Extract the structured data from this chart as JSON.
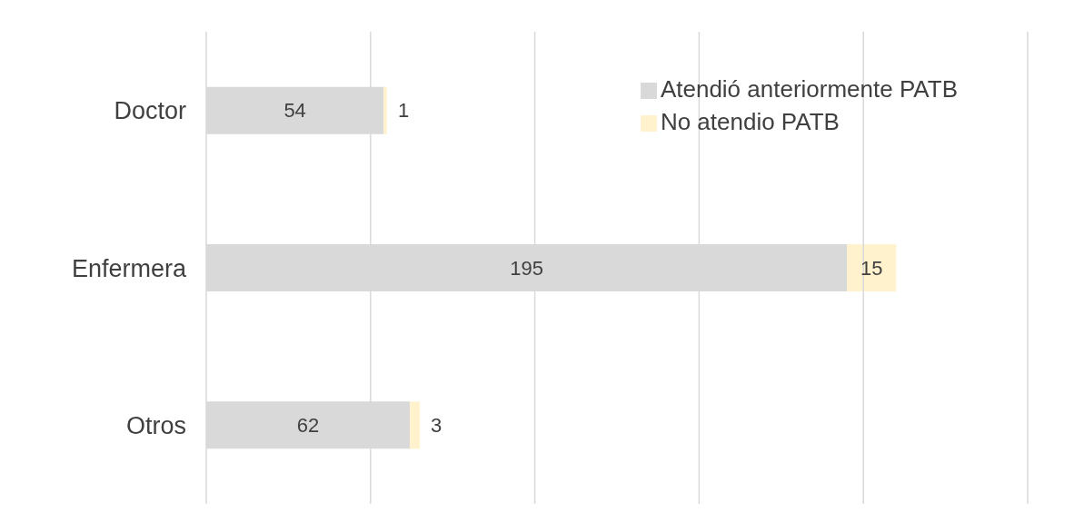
{
  "chart_data": {
    "type": "bar",
    "orientation": "horizontal",
    "stacked": true,
    "categories": [
      "Doctor",
      "Enfermera",
      "Otros"
    ],
    "series": [
      {
        "name": "Atendió anteriormente PATB",
        "color": "#d9d9d9",
        "values": [
          54,
          195,
          62
        ]
      },
      {
        "name": "No atendio PATB",
        "color": "#fff2cc",
        "values": [
          1,
          15,
          3
        ]
      }
    ],
    "xlim": [
      0,
      250
    ],
    "xticks": [
      {
        "value": 0,
        "label": null
      },
      {
        "value": 50,
        "label": null
      },
      {
        "value": 100,
        "label": null
      },
      {
        "value": 150,
        "label": null
      },
      {
        "value": 200,
        "label": null
      },
      {
        "value": 250,
        "label": null
      }
    ],
    "tick_labels": "y",
    "grid": "x",
    "legend": "top right",
    "data_labels": true
  }
}
